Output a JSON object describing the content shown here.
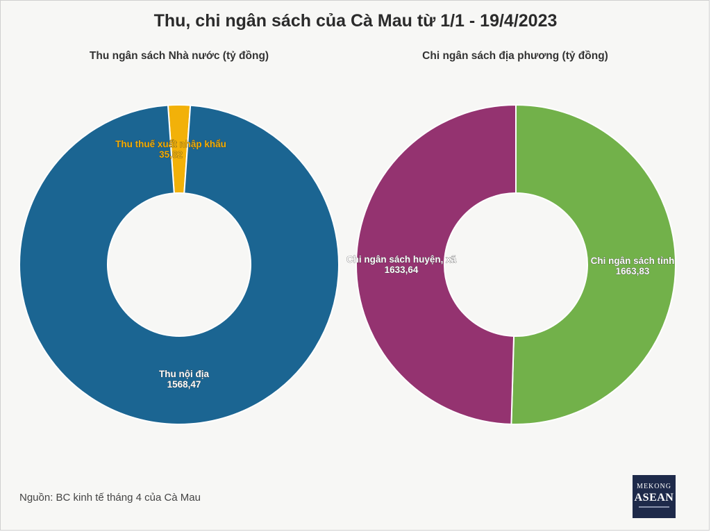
{
  "title": "Thu, chi ngân sách của Cà Mau từ 1/1 - 19/4/2023",
  "source": "Nguồn: BC kinh tế tháng 4 của Cà Mau",
  "logo": {
    "line1": "MEKONG",
    "line2": "ASEAN"
  },
  "chart_data": [
    {
      "type": "pie",
      "title": "Thu ngân sách Nhà nước (tỷ đồng)",
      "series": [
        {
          "name": "Thu thuế xuất nhập khẩu",
          "value": 35.82,
          "value_label": "35,82",
          "color": "#f2b109",
          "label_color": "#f2b109"
        },
        {
          "name": "Thu nội địa",
          "value": 1568.47,
          "value_label": "1568,47",
          "color": "#1b6592",
          "label_color": "#ffffff"
        }
      ]
    },
    {
      "type": "pie",
      "title": "Chi ngân sách địa phương (tỷ đồng)",
      "series": [
        {
          "name": "Chi ngân sách tỉnh",
          "value": 1663.83,
          "value_label": "1663,83",
          "color": "#72b14a",
          "label_color": "#ffffff"
        },
        {
          "name": "Chi ngân sách huyện, xã",
          "value": 1633.64,
          "value_label": "1633,64",
          "color": "#943370",
          "label_color": "#ffffff"
        }
      ]
    }
  ]
}
